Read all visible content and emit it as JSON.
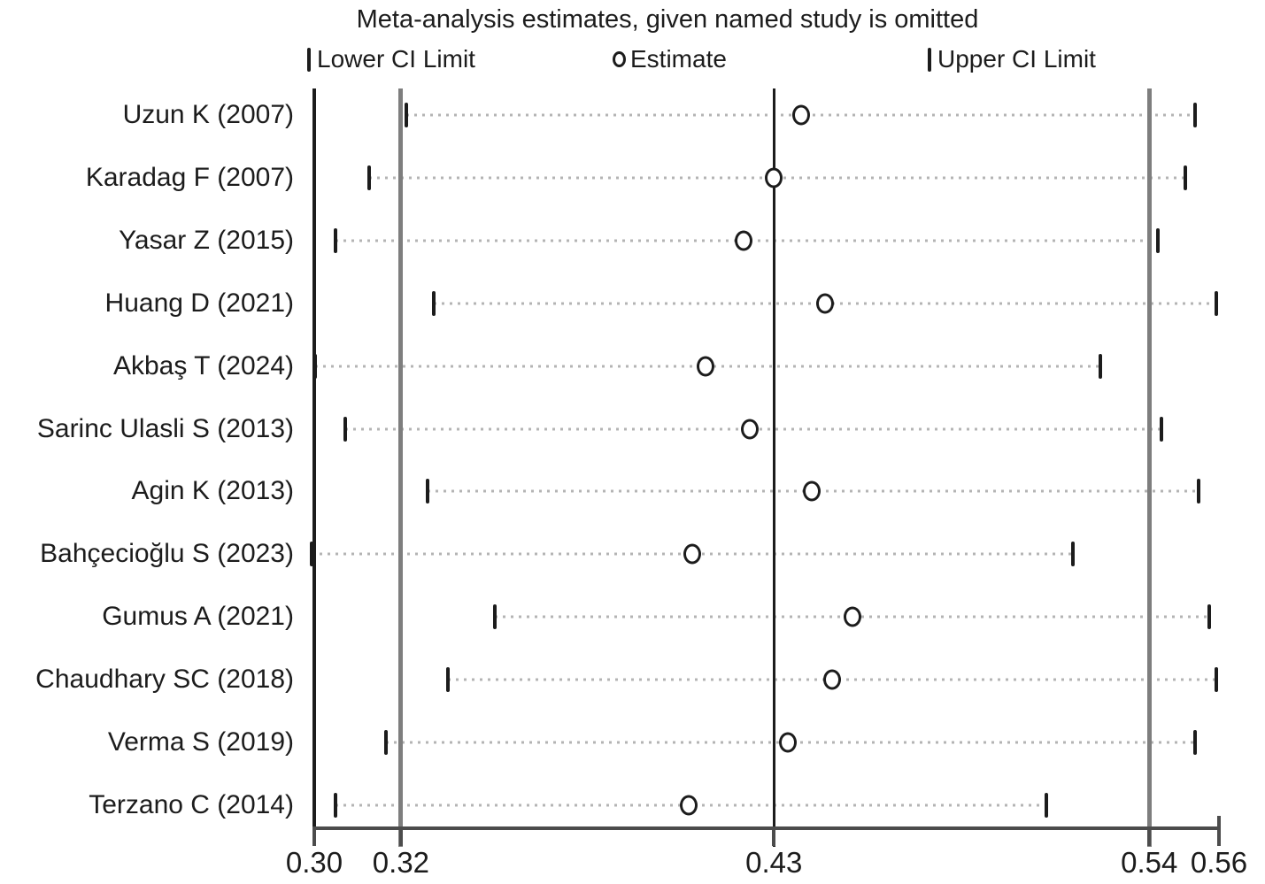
{
  "chart_data": {
    "type": "scatter",
    "subtype": "leave-one-out-meta-analysis-forest",
    "title": "Meta-analysis estimates, given named study is omitted",
    "legend": {
      "lower_label": "Lower CI Limit",
      "estimate_label": "Estimate",
      "upper_label": "Upper CI Limit",
      "position": "top"
    },
    "axis": {
      "orientation": "horizontal",
      "min": 0.2948,
      "max": 0.5609,
      "grid": false,
      "ticks": [
        {
          "label": "0.30",
          "value": 0.2948
        },
        {
          "label": "0.32",
          "value": 0.3203
        },
        {
          "label": "0.43",
          "value": 0.43
        },
        {
          "label": "0.54",
          "value": 0.5404
        },
        {
          "label": "0.56",
          "value": 0.5609
        }
      ]
    },
    "reference_lines": [
      {
        "name": "pooled-lower-ci",
        "value": 0.3203,
        "color": "#7e7e7e",
        "width": 5
      },
      {
        "name": "pooled-estimate",
        "value": 0.43,
        "color": "#1c1c1c",
        "width": 3
      },
      {
        "name": "pooled-upper-ci",
        "value": 0.5404,
        "color": "#7e7e7e",
        "width": 5
      }
    ],
    "studies": [
      {
        "label": "Uzun K (2007)",
        "lower": 0.322,
        "estimate": 0.438,
        "upper": 0.554
      },
      {
        "label": "Karadag F (2007)",
        "lower": 0.311,
        "estimate": 0.43,
        "upper": 0.551
      },
      {
        "label": "Yasar Z (2015)",
        "lower": 0.301,
        "estimate": 0.421,
        "upper": 0.543
      },
      {
        "label": "Huang D (2021)",
        "lower": 0.33,
        "estimate": 0.445,
        "upper": 0.56
      },
      {
        "label": "Akbaş T (2024)",
        "lower": 0.295,
        "estimate": 0.41,
        "upper": 0.526
      },
      {
        "label": "Sarinc Ulasli S (2013)",
        "lower": 0.304,
        "estimate": 0.423,
        "upper": 0.544
      },
      {
        "label": "Agin K (2013)",
        "lower": 0.328,
        "estimate": 0.441,
        "upper": 0.555
      },
      {
        "label": "Bahçecioğlu S (2023)",
        "lower": 0.294,
        "estimate": 0.406,
        "upper": 0.518
      },
      {
        "label": "Gumus A (2021)",
        "lower": 0.348,
        "estimate": 0.453,
        "upper": 0.558
      },
      {
        "label": "Chaudhary SC (2018)",
        "lower": 0.334,
        "estimate": 0.447,
        "upper": 0.56
      },
      {
        "label": "Verma S (2019)",
        "lower": 0.316,
        "estimate": 0.434,
        "upper": 0.554
      },
      {
        "label": "Terzano C (2014)",
        "lower": 0.301,
        "estimate": 0.405,
        "upper": 0.51
      }
    ],
    "colors": {
      "marker": "#1c1c1c",
      "dotted_ci_line": "#b4b4b4",
      "reference_gray": "#7e7e7e",
      "axis_line": "#4c4c4c",
      "frame": "#1c1c1c",
      "background": "#ffffff"
    }
  }
}
